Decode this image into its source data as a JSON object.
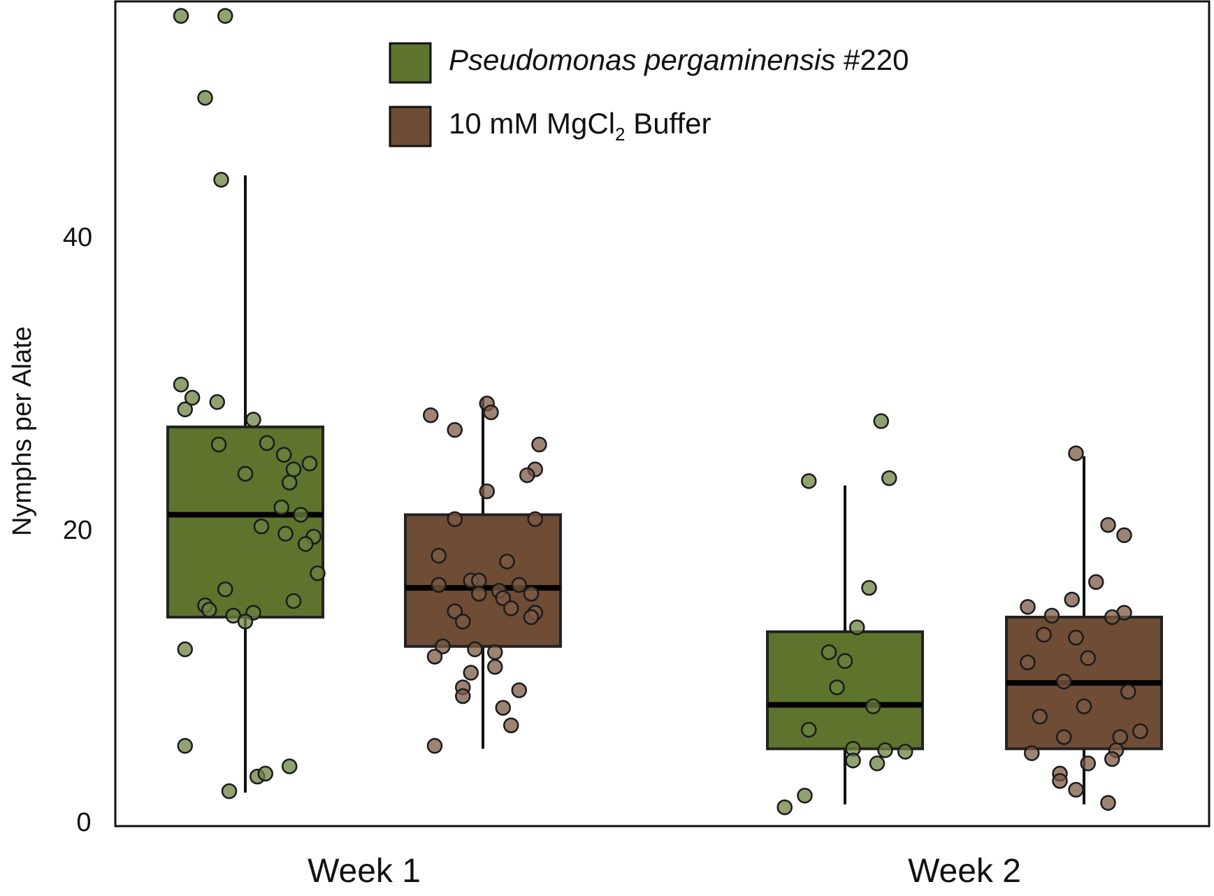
{
  "chart_data": {
    "type": "box",
    "ylabel": "Nymphs per Alate",
    "xlabel": "",
    "ylim": [
      0,
      55
    ],
    "yticks": [
      0,
      20,
      40
    ],
    "categories": [
      "Week 1",
      "Week 2"
    ],
    "legend": {
      "placement": "top-center",
      "entries": [
        {
          "name_italic": "Pseudomonas pergaminensis",
          "name_rest": " #220",
          "color": "#5e742c"
        },
        {
          "name_pre": "10 mM MgCl",
          "name_sub": "2",
          "name_post": " Buffer",
          "color": "#6e4c35"
        }
      ]
    },
    "colors": {
      "pseudomonas": "#5e742c",
      "buffer": "#6e4c35",
      "point_pseudomonas": "#6c8140",
      "point_buffer": "#7c5a44",
      "outline": "#1a1a1a"
    },
    "series": [
      {
        "key": "pseudomonas",
        "boxes": [
          {
            "category": "Week 1",
            "whisker_low": 2,
            "q1": 14,
            "median": 21,
            "q3": 27,
            "whisker_high": 44.2,
            "points": [
              [
                -0.8,
                55.1
              ],
              [
                -0.25,
                55.1
              ],
              [
                -0.5,
                49.5
              ],
              [
                -0.3,
                43.9
              ],
              [
                -0.66,
                29.0
              ],
              [
                -0.8,
                29.9
              ],
              [
                -0.75,
                28.2
              ],
              [
                -0.35,
                28.7
              ],
              [
                0.1,
                27.5
              ],
              [
                0.27,
                25.9
              ],
              [
                0.48,
                25.1
              ],
              [
                0.8,
                24.5
              ],
              [
                -0.33,
                25.8
              ],
              [
                0.6,
                24.1
              ],
              [
                0.0,
                23.8
              ],
              [
                0.55,
                23.2
              ],
              [
                0.45,
                21.5
              ],
              [
                0.69,
                21.0
              ],
              [
                0.2,
                20.2
              ],
              [
                0.5,
                19.7
              ],
              [
                0.85,
                19.5
              ],
              [
                0.75,
                19.0
              ],
              [
                0.9,
                17.0
              ],
              [
                -0.25,
                15.9
              ],
              [
                -0.5,
                14.8
              ],
              [
                -0.45,
                14.5
              ],
              [
                0.6,
                15.1
              ],
              [
                -0.15,
                14.1
              ],
              [
                0.1,
                14.3
              ],
              [
                0.0,
                13.7
              ],
              [
                -0.75,
                11.8
              ],
              [
                -0.75,
                5.2
              ],
              [
                0.55,
                3.8
              ],
              [
                0.15,
                3.1
              ],
              [
                0.25,
                3.3
              ],
              [
                -0.2,
                2.1
              ]
            ]
          },
          {
            "category": "Week 2",
            "whisker_low": 1.2,
            "q1": 5,
            "median": 8,
            "q3": 13,
            "whisker_high": 23,
            "points": [
              [
                0.45,
                27.4
              ],
              [
                0.55,
                23.5
              ],
              [
                -0.45,
                23.3
              ],
              [
                0.3,
                16.0
              ],
              [
                0.15,
                13.3
              ],
              [
                -0.2,
                11.6
              ],
              [
                0.0,
                11.0
              ],
              [
                -0.1,
                9.2
              ],
              [
                0.35,
                7.9
              ],
              [
                -0.45,
                6.3
              ],
              [
                0.1,
                5.0
              ],
              [
                0.5,
                4.9
              ],
              [
                0.75,
                4.8
              ],
              [
                0.1,
                4.2
              ],
              [
                0.4,
                4.0
              ],
              [
                -0.5,
                1.8
              ],
              [
                -0.75,
                1.0
              ]
            ]
          }
        ]
      },
      {
        "key": "buffer",
        "boxes": [
          {
            "category": "Week 1",
            "whisker_low": 5,
            "q1": 12,
            "median": 16,
            "q3": 21,
            "whisker_high": 29,
            "points": [
              [
                0.05,
                28.6
              ],
              [
                0.1,
                28.0
              ],
              [
                -0.65,
                27.8
              ],
              [
                -0.35,
                26.8
              ],
              [
                0.7,
                25.8
              ],
              [
                0.65,
                24.1
              ],
              [
                0.55,
                23.7
              ],
              [
                0.05,
                22.6
              ],
              [
                -0.35,
                20.7
              ],
              [
                0.65,
                20.7
              ],
              [
                -0.55,
                18.2
              ],
              [
                0.3,
                17.8
              ],
              [
                -0.15,
                16.5
              ],
              [
                -0.05,
                16.5
              ],
              [
                -0.55,
                16.2
              ],
              [
                0.45,
                16.2
              ],
              [
                0.2,
                15.8
              ],
              [
                -0.05,
                15.6
              ],
              [
                0.6,
                15.6
              ],
              [
                0.25,
                15.3
              ],
              [
                0.35,
                14.6
              ],
              [
                -0.35,
                14.4
              ],
              [
                0.65,
                14.3
              ],
              [
                0.6,
                14.0
              ],
              [
                -0.25,
                13.7
              ],
              [
                -0.5,
                12.0
              ],
              [
                -0.1,
                11.8
              ],
              [
                0.15,
                11.6
              ],
              [
                -0.6,
                11.3
              ],
              [
                0.15,
                10.6
              ],
              [
                -0.15,
                10.2
              ],
              [
                -0.25,
                9.2
              ],
              [
                0.45,
                9.0
              ],
              [
                -0.25,
                8.6
              ],
              [
                0.25,
                7.8
              ],
              [
                0.35,
                6.6
              ],
              [
                -0.6,
                5.2
              ]
            ]
          },
          {
            "category": "Week 2",
            "whisker_low": 1.2,
            "q1": 5,
            "median": 9.5,
            "q3": 14,
            "whisker_high": 25,
            "points": [
              [
                -0.1,
                25.2
              ],
              [
                0.3,
                20.3
              ],
              [
                0.5,
                19.6
              ],
              [
                0.15,
                16.4
              ],
              [
                -0.15,
                15.2
              ],
              [
                -0.7,
                14.7
              ],
              [
                0.5,
                14.3
              ],
              [
                -0.4,
                14.1
              ],
              [
                0.35,
                14.0
              ],
              [
                -0.5,
                12.8
              ],
              [
                -0.1,
                12.6
              ],
              [
                0.05,
                11.2
              ],
              [
                -0.7,
                10.9
              ],
              [
                -0.25,
                9.6
              ],
              [
                0.55,
                8.9
              ],
              [
                0.0,
                7.9
              ],
              [
                -0.55,
                7.2
              ],
              [
                0.7,
                6.2
              ],
              [
                -0.25,
                5.8
              ],
              [
                0.45,
                5.8
              ],
              [
                0.4,
                4.9
              ],
              [
                -0.65,
                4.7
              ],
              [
                0.35,
                4.3
              ],
              [
                0.05,
                4.0
              ],
              [
                -0.3,
                3.3
              ],
              [
                -0.3,
                2.8
              ],
              [
                -0.1,
                2.2
              ],
              [
                0.3,
                1.3
              ]
            ]
          }
        ]
      }
    ]
  }
}
